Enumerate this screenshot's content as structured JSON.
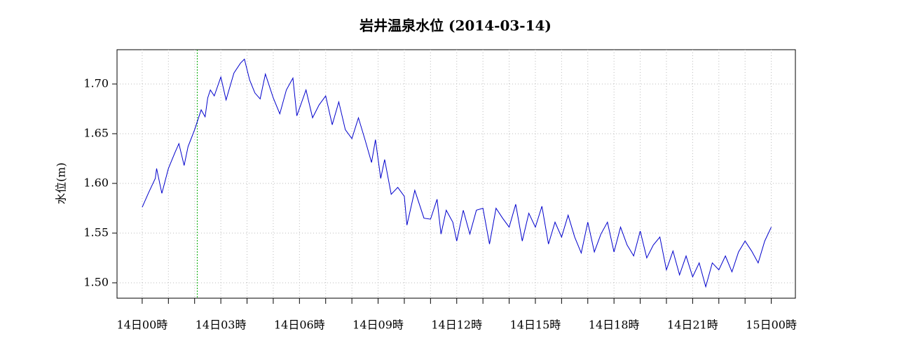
{
  "chart_data": {
    "type": "line",
    "title": "岩井温泉水位 (2014-03-14)",
    "y_label": "水位(m)",
    "x": [
      0,
      0.25,
      0.5,
      0.55,
      0.75,
      1.0,
      1.25,
      1.4,
      1.6,
      1.75,
      2.0,
      2.25,
      2.4,
      2.5,
      2.6,
      2.75,
      3.0,
      3.2,
      3.5,
      3.75,
      3.9,
      4.1,
      4.3,
      4.5,
      4.7,
      5.0,
      5.25,
      5.5,
      5.75,
      5.9,
      6.25,
      6.5,
      6.75,
      7.0,
      7.25,
      7.5,
      7.75,
      8.0,
      8.25,
      8.5,
      8.75,
      8.9,
      9.1,
      9.25,
      9.5,
      9.75,
      10.0,
      10.1,
      10.4,
      10.75,
      11.0,
      11.25,
      11.4,
      11.6,
      11.85,
      12.0,
      12.25,
      12.5,
      12.75,
      13.0,
      13.25,
      13.5,
      13.75,
      14.0,
      14.25,
      14.5,
      14.75,
      15.0,
      15.25,
      15.5,
      15.75,
      16.0,
      16.25,
      16.5,
      16.75,
      17.0,
      17.25,
      17.5,
      17.75,
      18.0,
      18.25,
      18.5,
      18.75,
      19.0,
      19.25,
      19.5,
      19.75,
      20.0,
      20.25,
      20.5,
      20.75,
      21.0,
      21.25,
      21.5,
      21.75,
      22.0,
      22.25,
      22.5,
      22.75,
      23.0,
      23.25,
      23.5,
      23.75,
      24.0
    ],
    "series": [
      {
        "color": "#0000cc",
        "values": [
          1.576,
          1.591,
          1.605,
          1.615,
          1.59,
          1.615,
          1.631,
          1.64,
          1.618,
          1.637,
          1.654,
          1.674,
          1.667,
          1.686,
          1.694,
          1.688,
          1.707,
          1.684,
          1.711,
          1.721,
          1.725,
          1.704,
          1.691,
          1.685,
          1.71,
          1.686,
          1.67,
          1.694,
          1.706,
          1.668,
          1.694,
          1.666,
          1.679,
          1.688,
          1.659,
          1.682,
          1.654,
          1.645,
          1.666,
          1.644,
          1.621,
          1.644,
          1.605,
          1.624,
          1.589,
          1.596,
          1.587,
          1.558,
          1.593,
          1.565,
          1.564,
          1.584,
          1.549,
          1.573,
          1.561,
          1.542,
          1.573,
          1.549,
          1.573,
          1.575,
          1.539,
          1.575,
          1.565,
          1.556,
          1.579,
          1.542,
          1.57,
          1.556,
          1.577,
          1.539,
          1.561,
          1.546,
          1.568,
          1.546,
          1.53,
          1.561,
          1.531,
          1.549,
          1.561,
          1.531,
          1.556,
          1.538,
          1.527,
          1.552,
          1.525,
          1.538,
          1.546,
          1.513,
          1.532,
          1.508,
          1.527,
          1.506,
          1.52,
          1.496,
          1.52,
          1.513,
          1.527,
          1.511,
          1.531,
          1.542,
          1.532,
          1.52,
          1.542,
          1.556
        ]
      }
    ],
    "xlim": [
      -0.96,
      24.92
    ],
    "ylim": [
      1.4845,
      1.7345
    ],
    "xticks": [
      {
        "value": 0,
        "label": "14日00時"
      },
      {
        "value": 3,
        "label": "14日03時"
      },
      {
        "value": 6,
        "label": "14日06時"
      },
      {
        "value": 9,
        "label": "14日09時"
      },
      {
        "value": 12,
        "label": "14日12時"
      },
      {
        "value": 15,
        "label": "14日15時"
      },
      {
        "value": 18,
        "label": "14日18時"
      },
      {
        "value": 21,
        "label": "14日21時"
      },
      {
        "value": 24,
        "label": "15日00時"
      }
    ],
    "xminorticks": [
      1,
      2,
      4,
      5,
      7,
      8,
      10,
      11,
      13,
      14,
      16,
      17,
      19,
      20,
      22,
      23
    ],
    "yticks": [
      {
        "value": 1.5,
        "label": "1.50"
      },
      1.55,
      {
        "value": 1.6,
        "label": "1.60"
      },
      1.65,
      {
        "value": 1.7,
        "label": "1.70"
      }
    ],
    "vline": {
      "x": 2.1,
      "color": "#00aa00"
    },
    "grid": true
  }
}
